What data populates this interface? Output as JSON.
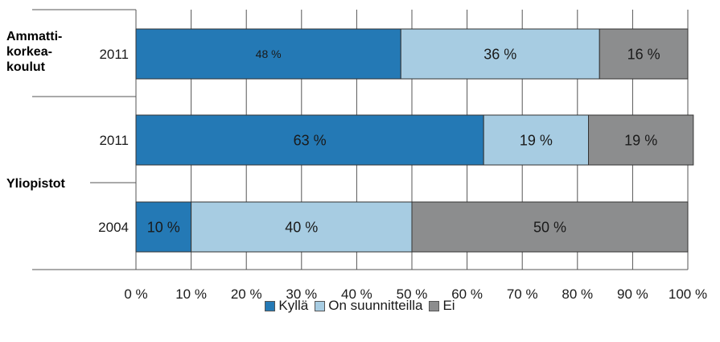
{
  "chart_data": {
    "type": "bar",
    "orientation": "horizontal",
    "stacked": true,
    "categories": [
      "2011",
      "2011",
      "2004"
    ],
    "groups": [
      {
        "label_lines": [
          "Ammatti-",
          "korkea-",
          "koulut"
        ],
        "rows": [
          0
        ]
      },
      {
        "label_lines": [
          "Yliopistot"
        ],
        "rows": [
          1,
          2
        ]
      }
    ],
    "series": [
      {
        "name": "Kyllä",
        "color": "#2479b5",
        "values": [
          48,
          63,
          10
        ],
        "labels": [
          "48 %",
          "63 %",
          "10 %"
        ]
      },
      {
        "name": "On suunnitteilla",
        "color": "#a7cce2",
        "values": [
          36,
          19,
          40
        ],
        "labels": [
          "36 %",
          "19 %",
          "40 %"
        ]
      },
      {
        "name": "Ei",
        "color": "#8c8d8e",
        "values": [
          16,
          19,
          50
        ],
        "labels": [
          "16 %",
          "19 %",
          "50 %"
        ]
      }
    ],
    "xlim": [
      0,
      100
    ],
    "xticks": [
      "0 %",
      "10 %",
      "20 %",
      "30 %",
      "40 %",
      "50 %",
      "60 %",
      "70 %",
      "80 %",
      "90 %",
      "100 %"
    ],
    "grid": true,
    "legend_position": "bottom"
  }
}
